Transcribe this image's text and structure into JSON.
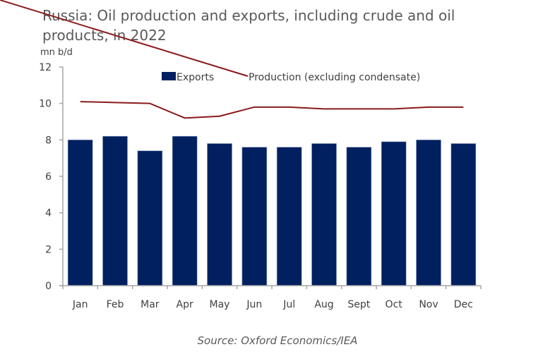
{
  "chart_data": {
    "type": "bar",
    "title": "Russia: Oil production and exports, including crude and oil products, in 2022",
    "ylabel": "mn b/d",
    "xlabel": "",
    "ylim": [
      0,
      12
    ],
    "yticks": [
      0,
      2,
      4,
      6,
      8,
      10,
      12
    ],
    "grid": false,
    "legend_position": "top-center",
    "categories": [
      "Jan",
      "Feb",
      "Mar",
      "Apr",
      "May",
      "Jun",
      "Jul",
      "Aug",
      "Sept",
      "Oct",
      "Nov",
      "Dec"
    ],
    "series": [
      {
        "name": "Exports",
        "type": "bar",
        "color": "#002060",
        "values": [
          8.0,
          8.2,
          7.4,
          8.2,
          7.8,
          7.6,
          7.6,
          7.8,
          7.6,
          7.9,
          8.0,
          7.8
        ]
      },
      {
        "name": "Production (excluding condensate)",
        "type": "line",
        "color": "#8B1A1A",
        "values": [
          10.1,
          10.05,
          10.0,
          9.2,
          9.3,
          9.8,
          9.8,
          9.7,
          9.7,
          9.7,
          9.8,
          9.8
        ]
      }
    ],
    "source": "Source: Oxford Economics/IEA"
  }
}
